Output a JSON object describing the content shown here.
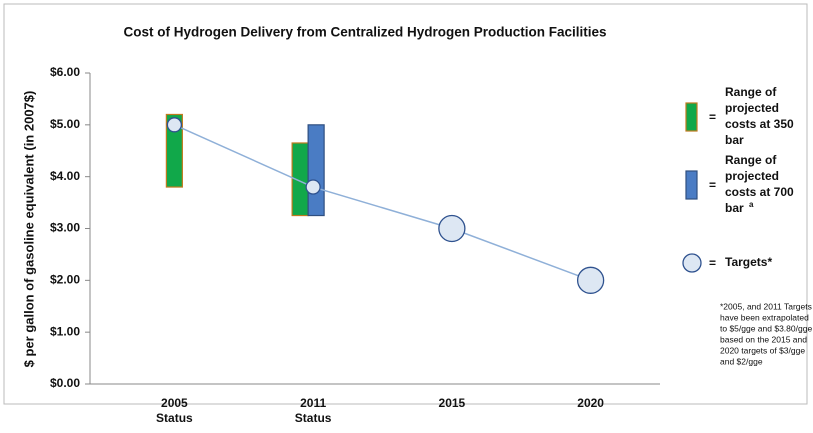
{
  "chart_data": {
    "type": "range-bar",
    "title": "Cost of Hydrogen Delivery from Centralized Hydrogen Production Facilities",
    "y_label": "$ per gallon of gasoline equivalent (in 2007$)",
    "categories": [
      "2005 Status",
      "2011 Status",
      "2015",
      "2020"
    ],
    "ylim": [
      0,
      6
    ],
    "yticks": [
      {
        "value": 0,
        "label": "$0.00"
      },
      {
        "value": 1,
        "label": "$1.00"
      },
      {
        "value": 2,
        "label": "$2.00"
      },
      {
        "value": 3,
        "label": "$3.00"
      },
      {
        "value": 4,
        "label": "$4.00"
      },
      {
        "value": 5,
        "label": "$5.00"
      },
      {
        "value": 6,
        "label": "$6.00"
      }
    ],
    "grid": false,
    "legend_separator": "=",
    "series": [
      {
        "name": "Range of projected costs at 350 bar",
        "color": "#11a84a",
        "border": "#c07a1e",
        "low": [
          3.8,
          3.25,
          null,
          null
        ],
        "high": [
          5.2,
          4.65,
          null,
          null
        ]
      },
      {
        "name": "Range of projected costs at 700 bar",
        "name_superscript": "a",
        "color": "#4a7cc4",
        "border": "#2f4f80",
        "low": [
          null,
          3.25,
          null,
          null
        ],
        "high": [
          null,
          5.0,
          null,
          null
        ]
      },
      {
        "name": "Targets*",
        "color": "#dde7f3",
        "border": "#2f528f",
        "line_color": "#8fb0d8",
        "values": [
          5.0,
          3.8,
          3.0,
          2.0
        ]
      }
    ],
    "footnote": [
      "*2005, and 2011 Targets",
      "have been extrapolated",
      "to $5/gge and $3.80/gge",
      "based on the 2015 and",
      "2020 targets of $3/gge",
      "and $2/gge"
    ]
  }
}
